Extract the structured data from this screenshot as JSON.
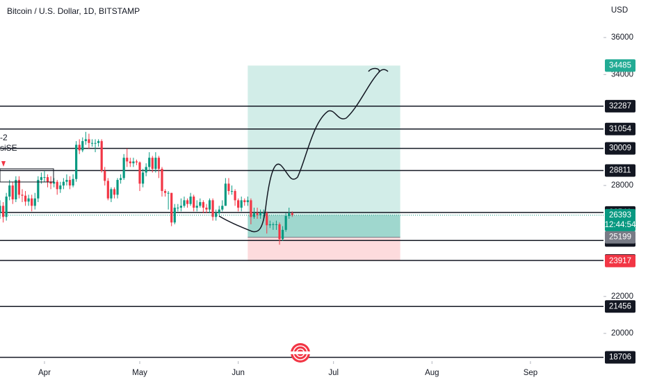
{
  "chart_data": {
    "type": "candlestick",
    "title": "Bitcoin / U.S. Dollar, 1D, BITSTAMP",
    "currency": "USD",
    "indicator_labels": [
      "-2",
      "siSE"
    ],
    "up_color": "#089981",
    "down_color": "#f23645",
    "open": [
      26500,
      26900,
      26300,
      27400,
      28000,
      27250,
      28300,
      27500,
      27450,
      27130,
      27300,
      26900,
      27300,
      28300,
      28450,
      28450,
      28200,
      28100,
      28200,
      27800,
      28000,
      28200,
      28300,
      28000,
      28350,
      30200,
      29900,
      30400,
      30500,
      30300,
      30300,
      30300,
      30400,
      28800,
      28250,
      27300,
      27800,
      27500,
      28300,
      28400,
      29500,
      29300,
      29200,
      29300,
      29250,
      28100,
      28700,
      29000,
      29500,
      28900,
      29500,
      28900,
      27700,
      27600,
      27600,
      26000,
      26800,
      26800,
      26900,
      27200,
      27000,
      27400,
      26800,
      26900,
      27100,
      26800,
      26700,
      27200,
      26300,
      26500,
      26700,
      26900,
      28100,
      27700,
      27700,
      27200,
      26800,
      27200,
      27100,
      27200,
      26300,
      26500,
      26400,
      26500,
      26500,
      25850,
      25900,
      25900,
      25900,
      25100,
      25600,
      26350,
      26500
    ],
    "high": [
      27200,
      27100,
      27600,
      28300,
      28200,
      28500,
      28500,
      27800,
      27700,
      27500,
      27500,
      27600,
      28500,
      28700,
      28800,
      28600,
      28500,
      28400,
      28300,
      28200,
      28400,
      28600,
      28500,
      28600,
      30400,
      30500,
      30600,
      30900,
      30800,
      30500,
      30500,
      30500,
      30500,
      29000,
      28400,
      27900,
      27900,
      28400,
      28600,
      29700,
      30000,
      29500,
      29500,
      29400,
      29300,
      28900,
      29200,
      29800,
      29600,
      29800,
      29600,
      29000,
      27800,
      27700,
      27600,
      27000,
      27000,
      27300,
      27400,
      27300,
      27600,
      27500,
      27200,
      27300,
      27200,
      27000,
      27300,
      27300,
      26700,
      26900,
      27200,
      28400,
      28400,
      28000,
      27800,
      27300,
      27400,
      27300,
      27400,
      27300,
      26800,
      26800,
      26700,
      26700,
      26600,
      26100,
      26000,
      26100,
      26000,
      25800,
      26500,
      26800,
      26600
    ],
    "low": [
      26200,
      26000,
      26100,
      27200,
      27000,
      27100,
      27300,
      27100,
      26900,
      26900,
      26600,
      26700,
      27100,
      28100,
      28200,
      27900,
      27800,
      27900,
      27500,
      27600,
      27800,
      28000,
      27800,
      27900,
      28200,
      29700,
      29800,
      30200,
      30000,
      30100,
      29800,
      30100,
      28700,
      28000,
      27200,
      27100,
      27300,
      27300,
      28100,
      28300,
      29000,
      29000,
      29000,
      29100,
      27700,
      27900,
      28500,
      28800,
      28700,
      28700,
      28400,
      27400,
      27400,
      26700,
      25800,
      25900,
      26600,
      26600,
      26800,
      26800,
      26900,
      26600,
      26600,
      26800,
      26500,
      26500,
      26500,
      26100,
      26100,
      26400,
      26600,
      26900,
      27500,
      27500,
      26900,
      26600,
      26600,
      26900,
      26900,
      25900,
      26200,
      26200,
      26200,
      26200,
      25400,
      25700,
      25600,
      25600,
      24800,
      25000,
      25500,
      26200,
      26300
    ],
    "close": [
      26900,
      26300,
      27400,
      28000,
      27250,
      28300,
      27500,
      27450,
      27130,
      27300,
      26900,
      27300,
      28300,
      28450,
      28450,
      28200,
      28100,
      28200,
      27800,
      28000,
      28200,
      28300,
      28000,
      28350,
      30200,
      29900,
      30400,
      30500,
      30300,
      30300,
      30300,
      30400,
      28800,
      28250,
      27300,
      27800,
      27500,
      28300,
      28400,
      29500,
      29300,
      29200,
      29300,
      29250,
      28100,
      28700,
      29000,
      29500,
      28900,
      29500,
      28900,
      27700,
      27600,
      27600,
      26000,
      26800,
      26800,
      26900,
      27200,
      27000,
      27400,
      26800,
      26900,
      27100,
      26800,
      26700,
      27200,
      26300,
      26500,
      26700,
      26900,
      28100,
      27700,
      27700,
      27200,
      26800,
      27200,
      27100,
      27200,
      26300,
      26500,
      26400,
      26500,
      26500,
      25850,
      25900,
      25900,
      25900,
      25100,
      25600,
      26350,
      26500,
      26393
    ],
    "xlim": [
      0,
      190
    ],
    "xticks": [
      {
        "value": 14,
        "label": "Apr"
      },
      {
        "value": 44,
        "label": "May"
      },
      {
        "value": 75,
        "label": "Jun"
      },
      {
        "value": 105,
        "label": "Jul"
      },
      {
        "value": 136,
        "label": "Aug"
      },
      {
        "value": 167,
        "label": "Sep"
      }
    ],
    "ylim": [
      18500,
      38030
    ],
    "yticks": [
      20000,
      22000,
      28000,
      34000,
      36000
    ],
    "levels": [
      32287,
      31054,
      30009,
      28811,
      26541,
      25024,
      23945,
      21456,
      18706
    ],
    "position": {
      "x": [
        78,
        126
      ],
      "target": 34485,
      "entry": 25199,
      "stop": 23917
    },
    "current_price": {
      "value": 26393,
      "countdown": "12:44:54"
    }
  }
}
